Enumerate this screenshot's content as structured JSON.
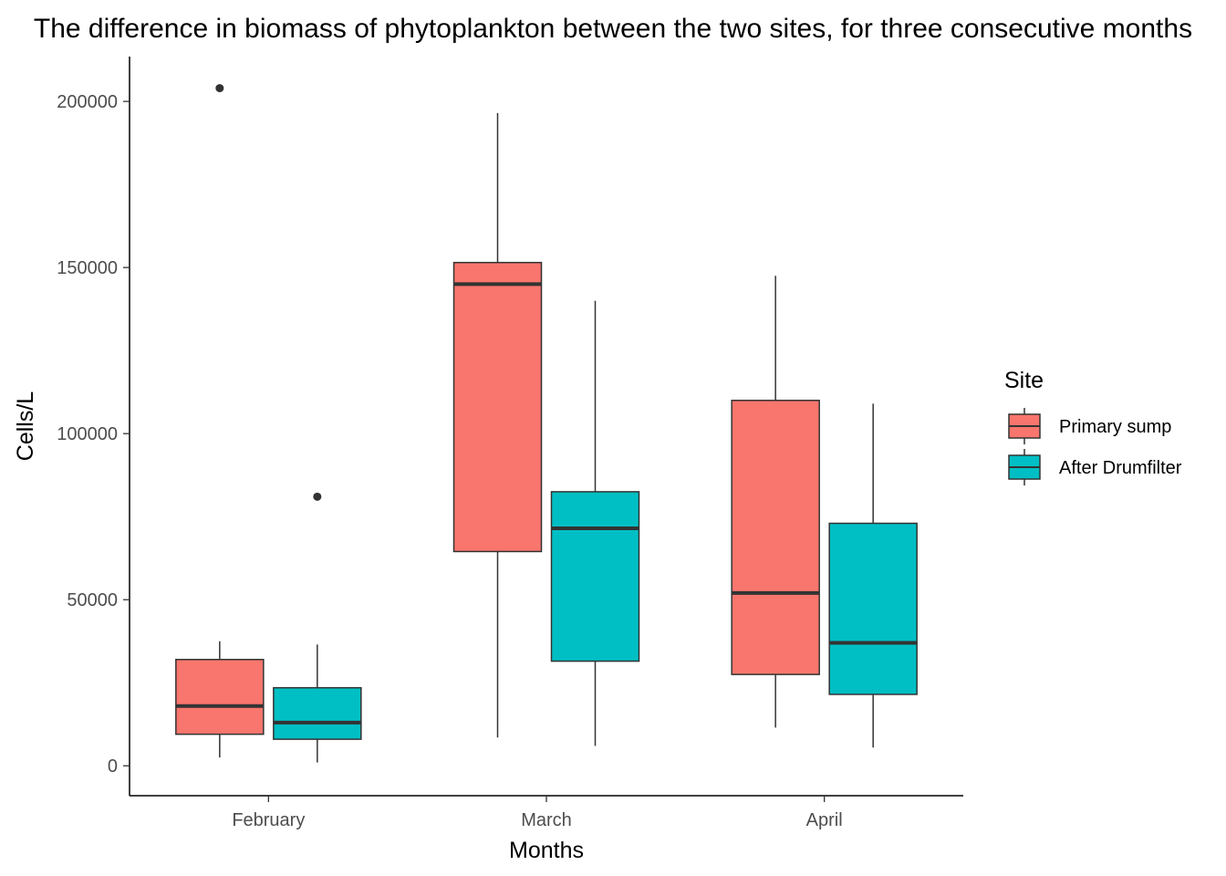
{
  "chart_data": {
    "type": "boxplot",
    "title": "The difference in biomass of phytoplankton between the two sites, for three consecutive months",
    "xlabel": "Months",
    "ylabel": "Cells/L",
    "categories": [
      "February",
      "March",
      "April"
    ],
    "ylim": [
      -9000,
      213500
    ],
    "yticks": [
      0,
      50000,
      100000,
      150000,
      200000
    ],
    "ytick_labels": [
      "0",
      "50000",
      "100000",
      "150000",
      "200000"
    ],
    "grid": false,
    "legend": {
      "title": "Site",
      "placement": "right"
    },
    "series": [
      {
        "name": "Primary sump",
        "color": "#F8766D",
        "boxes": [
          {
            "whisker_low": 2500,
            "q1": 9500,
            "median": 18000,
            "q3": 32000,
            "whisker_high": 37500,
            "outliers": [
              204000
            ]
          },
          {
            "whisker_low": 8500,
            "q1": 64500,
            "median": 145000,
            "q3": 151500,
            "whisker_high": 196500,
            "outliers": []
          },
          {
            "whisker_low": 11500,
            "q1": 27500,
            "median": 52000,
            "q3": 110000,
            "whisker_high": 147500,
            "outliers": []
          }
        ]
      },
      {
        "name": "After Drumfilter",
        "color": "#00BFC4",
        "boxes": [
          {
            "whisker_low": 1000,
            "q1": 8000,
            "median": 13000,
            "q3": 23500,
            "whisker_high": 36500,
            "outliers": [
              81000
            ]
          },
          {
            "whisker_low": 6000,
            "q1": 31500,
            "median": 71500,
            "q3": 82500,
            "whisker_high": 140000,
            "outliers": []
          },
          {
            "whisker_low": 5500,
            "q1": 21500,
            "median": 37000,
            "q3": 73000,
            "whisker_high": 109000,
            "outliers": []
          }
        ]
      }
    ]
  }
}
